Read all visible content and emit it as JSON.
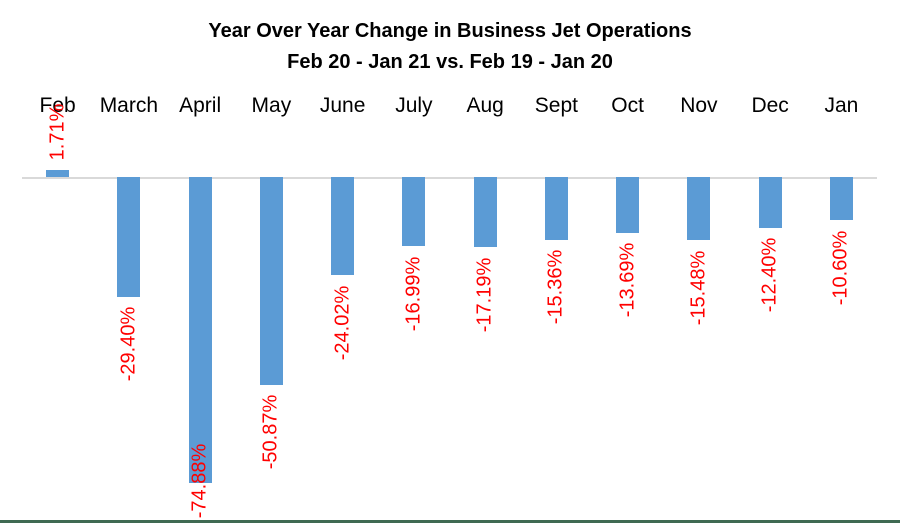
{
  "title": {
    "line1": "Year Over Year Change in Business Jet Operations",
    "line2": "Feb 20 - Jan 21 vs. Feb 19 - Jan 20"
  },
  "chart_data": {
    "type": "bar",
    "title": "Year Over Year Change in Business Jet Operations",
    "subtitle": "Feb 20 - Jan 21 vs. Feb 19 - Jan 20",
    "categories": [
      "Feb",
      "March",
      "April",
      "May",
      "June",
      "July",
      "Aug",
      "Sept",
      "Oct",
      "Nov",
      "Dec",
      "Jan"
    ],
    "values": [
      1.71,
      -29.4,
      -74.88,
      -50.87,
      -24.02,
      -16.99,
      -17.19,
      -15.36,
      -13.69,
      -15.48,
      -12.4,
      -10.6
    ],
    "labels": [
      "1.71%",
      "-29.40%",
      "-74.88%",
      "-50.87%",
      "-24.02%",
      "-16.99%",
      "-17.19%",
      "-15.36%",
      "-13.69%",
      "-15.48%",
      "-12.40%",
      "-10.60%"
    ],
    "xlabel": "",
    "ylabel": "",
    "ylim": [
      -80,
      5
    ],
    "grid": false,
    "legend": false,
    "category_axis_position": "top",
    "label_rotation_deg": -90,
    "bar_color": "#5B9BD5",
    "label_color": "#FF0000",
    "category_text_color": "#000000",
    "title_color": "#000000",
    "zero_line_color": "#D9D9D9",
    "bottom_border_color": "#3F6A52",
    "background_color": "#FFFFFF"
  }
}
